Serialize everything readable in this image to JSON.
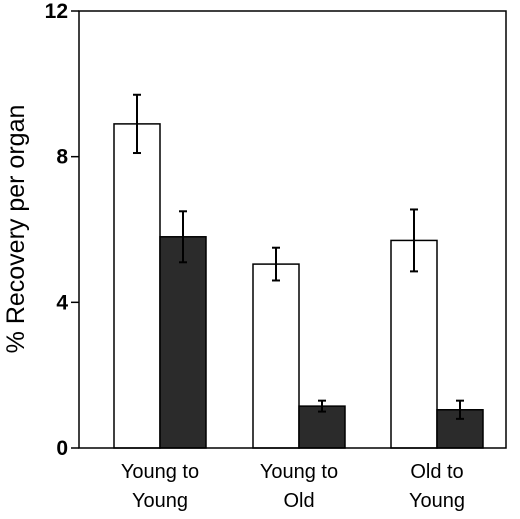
{
  "chart_data": {
    "type": "bar",
    "title": "",
    "ylabel": "% Recovery per organ",
    "xlabel": "",
    "ylim": [
      0,
      12
    ],
    "yticks": [
      0,
      4,
      8,
      12
    ],
    "grid": false,
    "categories": [
      [
        "Young to",
        "Young"
      ],
      [
        "Young to",
        "Old"
      ],
      [
        "Old to",
        "Young"
      ]
    ],
    "series": [
      {
        "color": "#ffffff",
        "values": [
          8.9,
          5.05,
          5.7
        ],
        "errors": [
          0.8,
          0.45,
          0.85
        ]
      },
      {
        "color": "#2b2b2b",
        "values": [
          5.8,
          1.15,
          1.05
        ],
        "errors": [
          0.7,
          0.15,
          0.25
        ]
      }
    ]
  }
}
